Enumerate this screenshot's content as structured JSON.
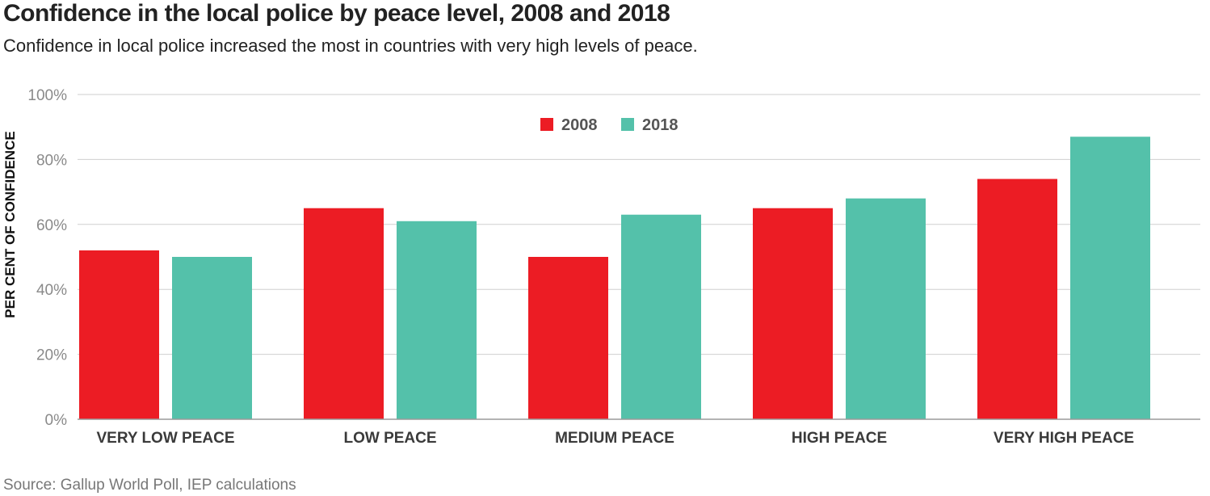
{
  "chart_data": {
    "type": "bar",
    "title": "Confidence in the local police by peace level, 2008 and 2018",
    "subtitle": "Confidence in local police increased the most in countries with very high levels of peace.",
    "xlabel": "",
    "ylabel": "PER CENT OF CONFIDENCE",
    "categories": [
      "VERY LOW PEACE",
      "LOW PEACE",
      "MEDIUM PEACE",
      "HIGH PEACE",
      "VERY HIGH PEACE"
    ],
    "series": [
      {
        "name": "2008",
        "color": "#ec1c24",
        "values": [
          52,
          65,
          50,
          65,
          74
        ]
      },
      {
        "name": "2018",
        "color": "#54c1aa",
        "values": [
          50,
          61,
          63,
          68,
          87
        ]
      }
    ],
    "ylim": [
      0,
      100
    ],
    "yticks": [
      0,
      20,
      40,
      60,
      80,
      100
    ],
    "ytick_labels": [
      "0%",
      "20%",
      "40%",
      "60%",
      "80%",
      "100%"
    ],
    "grid": true,
    "legend_position": "top-center",
    "source": "Source: Gallup World Poll, IEP calculations"
  }
}
